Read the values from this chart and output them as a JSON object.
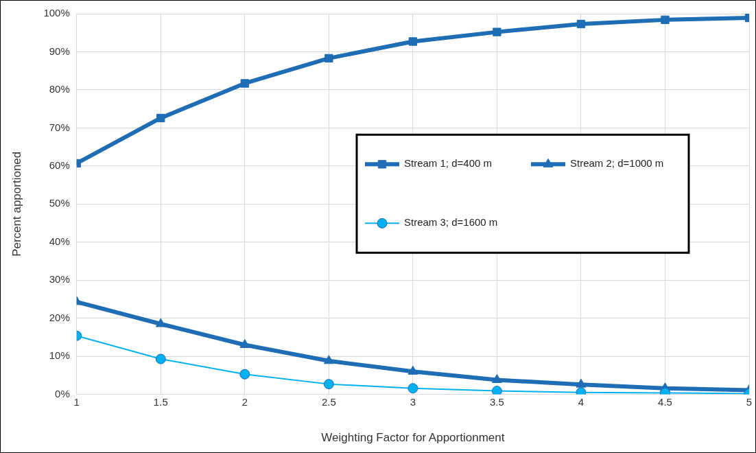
{
  "chart_data": {
    "type": "line",
    "xlabel": "Weighting Factor for Apportionment",
    "ylabel": "Percent apportioned",
    "x": [
      1,
      1.5,
      2,
      2.5,
      3,
      3.5,
      4,
      4.5,
      5
    ],
    "series": [
      {
        "name": "Stream 1; d=400 m",
        "color": "#1f6db5",
        "marker": "square",
        "values": [
          60.7,
          72.6,
          81.7,
          88.3,
          92.7,
          95.2,
          97.3,
          98.4,
          98.9
        ]
      },
      {
        "name": "Stream 2; d=1000 m",
        "color": "#1f6db5",
        "marker": "triangle",
        "values": [
          24.3,
          18.5,
          13.0,
          8.8,
          6.0,
          3.8,
          2.6,
          1.6,
          1.1
        ]
      },
      {
        "name": "Stream 3; d=1600 m",
        "color": "#00b0f0",
        "marker": "circle",
        "values": [
          15.4,
          9.3,
          5.3,
          2.7,
          1.6,
          0.9,
          0.5,
          0.4,
          0.2
        ]
      }
    ],
    "xlim": [
      1,
      5
    ],
    "xticks": [
      1,
      1.5,
      2,
      2.5,
      3,
      3.5,
      4,
      4.5,
      5
    ],
    "ylim": [
      0,
      100
    ],
    "yticks": [
      {
        "value": 0,
        "label": "0%"
      },
      {
        "value": 10,
        "label": "10%"
      },
      {
        "value": 20,
        "label": "20%"
      },
      {
        "value": 30,
        "label": "30%"
      },
      {
        "value": 40,
        "label": "40%"
      },
      {
        "value": 50,
        "label": "50%"
      },
      {
        "value": 60,
        "label": "60%"
      },
      {
        "value": 70,
        "label": "70%"
      },
      {
        "value": 80,
        "label": "80%"
      },
      {
        "value": 90,
        "label": "90%"
      },
      {
        "value": 100,
        "label": "100%"
      }
    ],
    "grid": true,
    "legend": "right",
    "line_style": "solid"
  }
}
